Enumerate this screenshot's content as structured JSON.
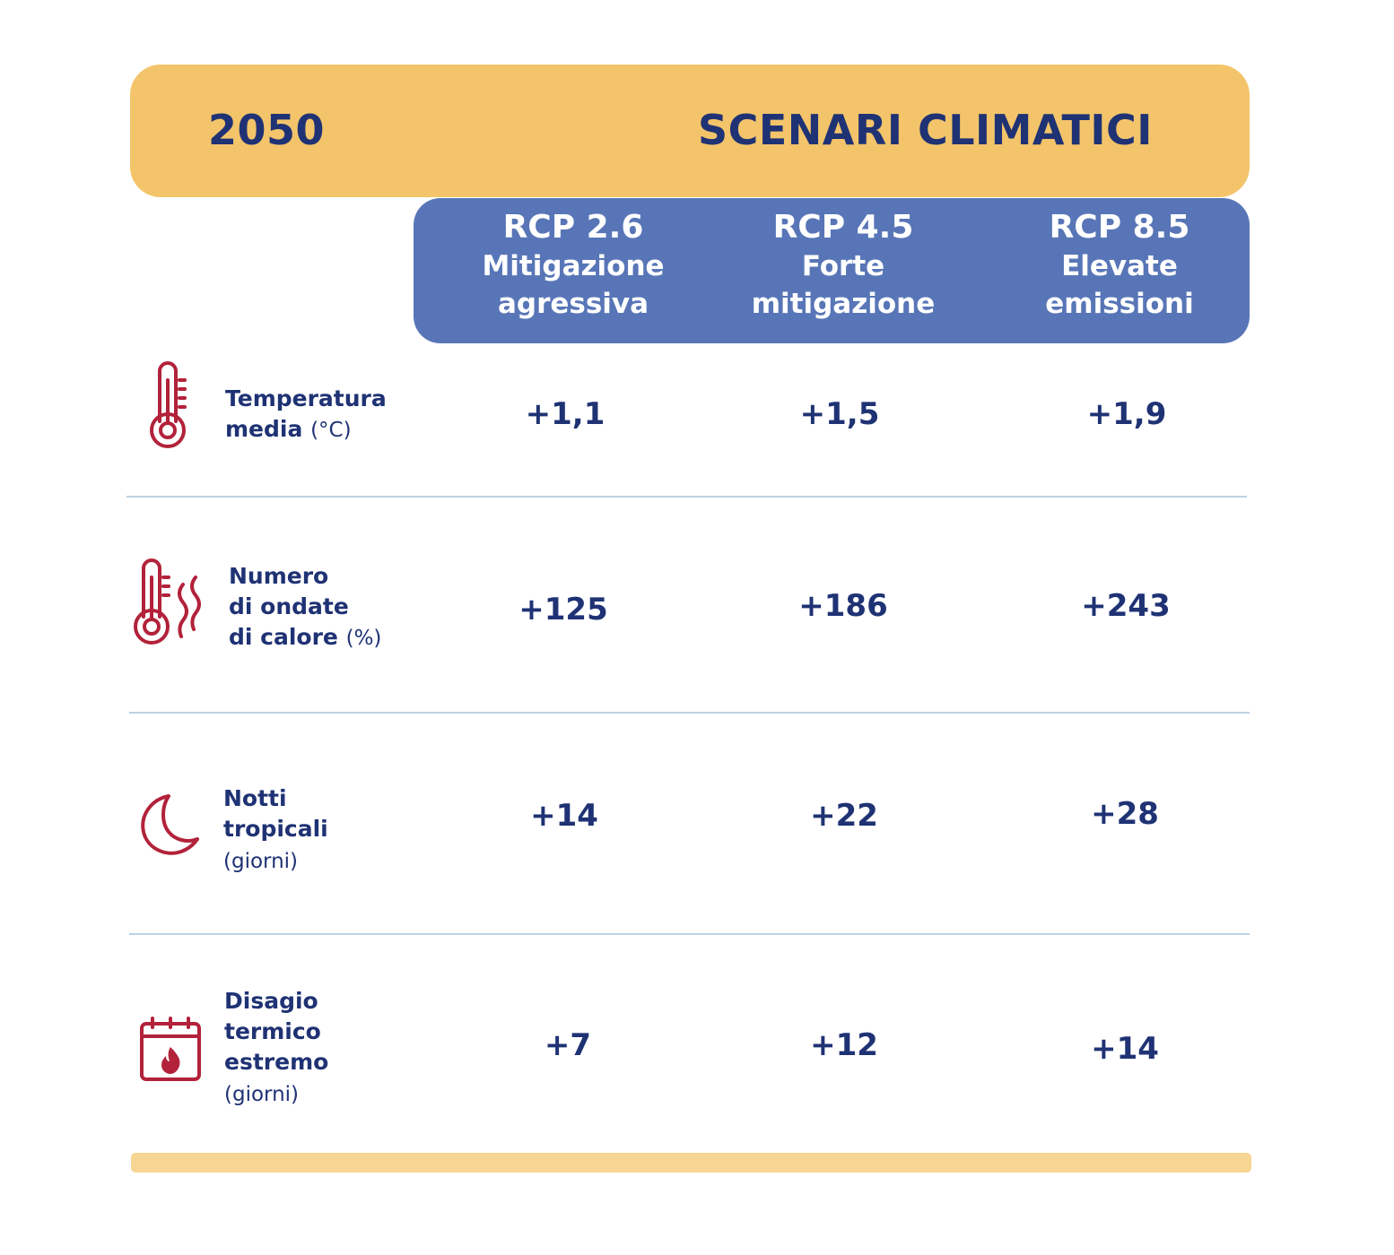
{
  "header": {
    "year": "2050",
    "title": "SCENARI CLIMATICI"
  },
  "scenarios": [
    {
      "code": "RCP 2.6",
      "desc": "Mitigazione\nagressiva"
    },
    {
      "code": "RCP 4.5",
      "desc": "Forte\nmitigazione"
    },
    {
      "code": "RCP 8.5",
      "desc": "Elevate\nemissioni"
    }
  ],
  "rows": [
    {
      "label_lines": [
        "Temperatura",
        "media"
      ],
      "unit": "(°C)",
      "icon": "thermometer-icon",
      "values": [
        "+1,1",
        "+1,5",
        "+1,9"
      ]
    },
    {
      "label_lines": [
        "Numero",
        "di ondate",
        "di calore"
      ],
      "unit": "(%)",
      "icon": "heatwave-thermometer-icon",
      "values": [
        "+125",
        "+186",
        "+243"
      ]
    },
    {
      "label_lines": [
        "Notti",
        "tropicali"
      ],
      "unit": "(giorni)",
      "icon": "moon-icon",
      "values": [
        "+14",
        "+22",
        "+28"
      ]
    },
    {
      "label_lines": [
        "Disagio",
        "termico",
        "estremo"
      ],
      "unit": "(giorni)",
      "icon": "calendar-flame-icon",
      "values": [
        "+7",
        "+12",
        "+14"
      ]
    }
  ],
  "colors": {
    "header_band": "#f3c46a",
    "scenario_band": "#5876b7",
    "text_navy": "#1f3274",
    "icon_red": "#b2223a",
    "divider": "#b9d2e6",
    "bottom_bar": "#f7d592"
  },
  "chart_data": {
    "type": "table",
    "title": "SCENARI CLIMATICI",
    "columns": [
      "RCP 2.6 Mitigazione agressiva",
      "RCP 4.5 Forte mitigazione",
      "RCP 8.5 Elevate emissioni"
    ],
    "rows": [
      {
        "name": "Temperatura media (°C)",
        "values": [
          "+1,1",
          "+1,5",
          "+1,9"
        ]
      },
      {
        "name": "Numero di ondate di calore (%)",
        "values": [
          "+125",
          "+186",
          "+243"
        ]
      },
      {
        "name": "Notti tropicali (giorni)",
        "values": [
          "+14",
          "+22",
          "+28"
        ]
      },
      {
        "name": "Disagio termico estremo (giorni)",
        "values": [
          "+7",
          "+12",
          "+14"
        ]
      }
    ]
  }
}
